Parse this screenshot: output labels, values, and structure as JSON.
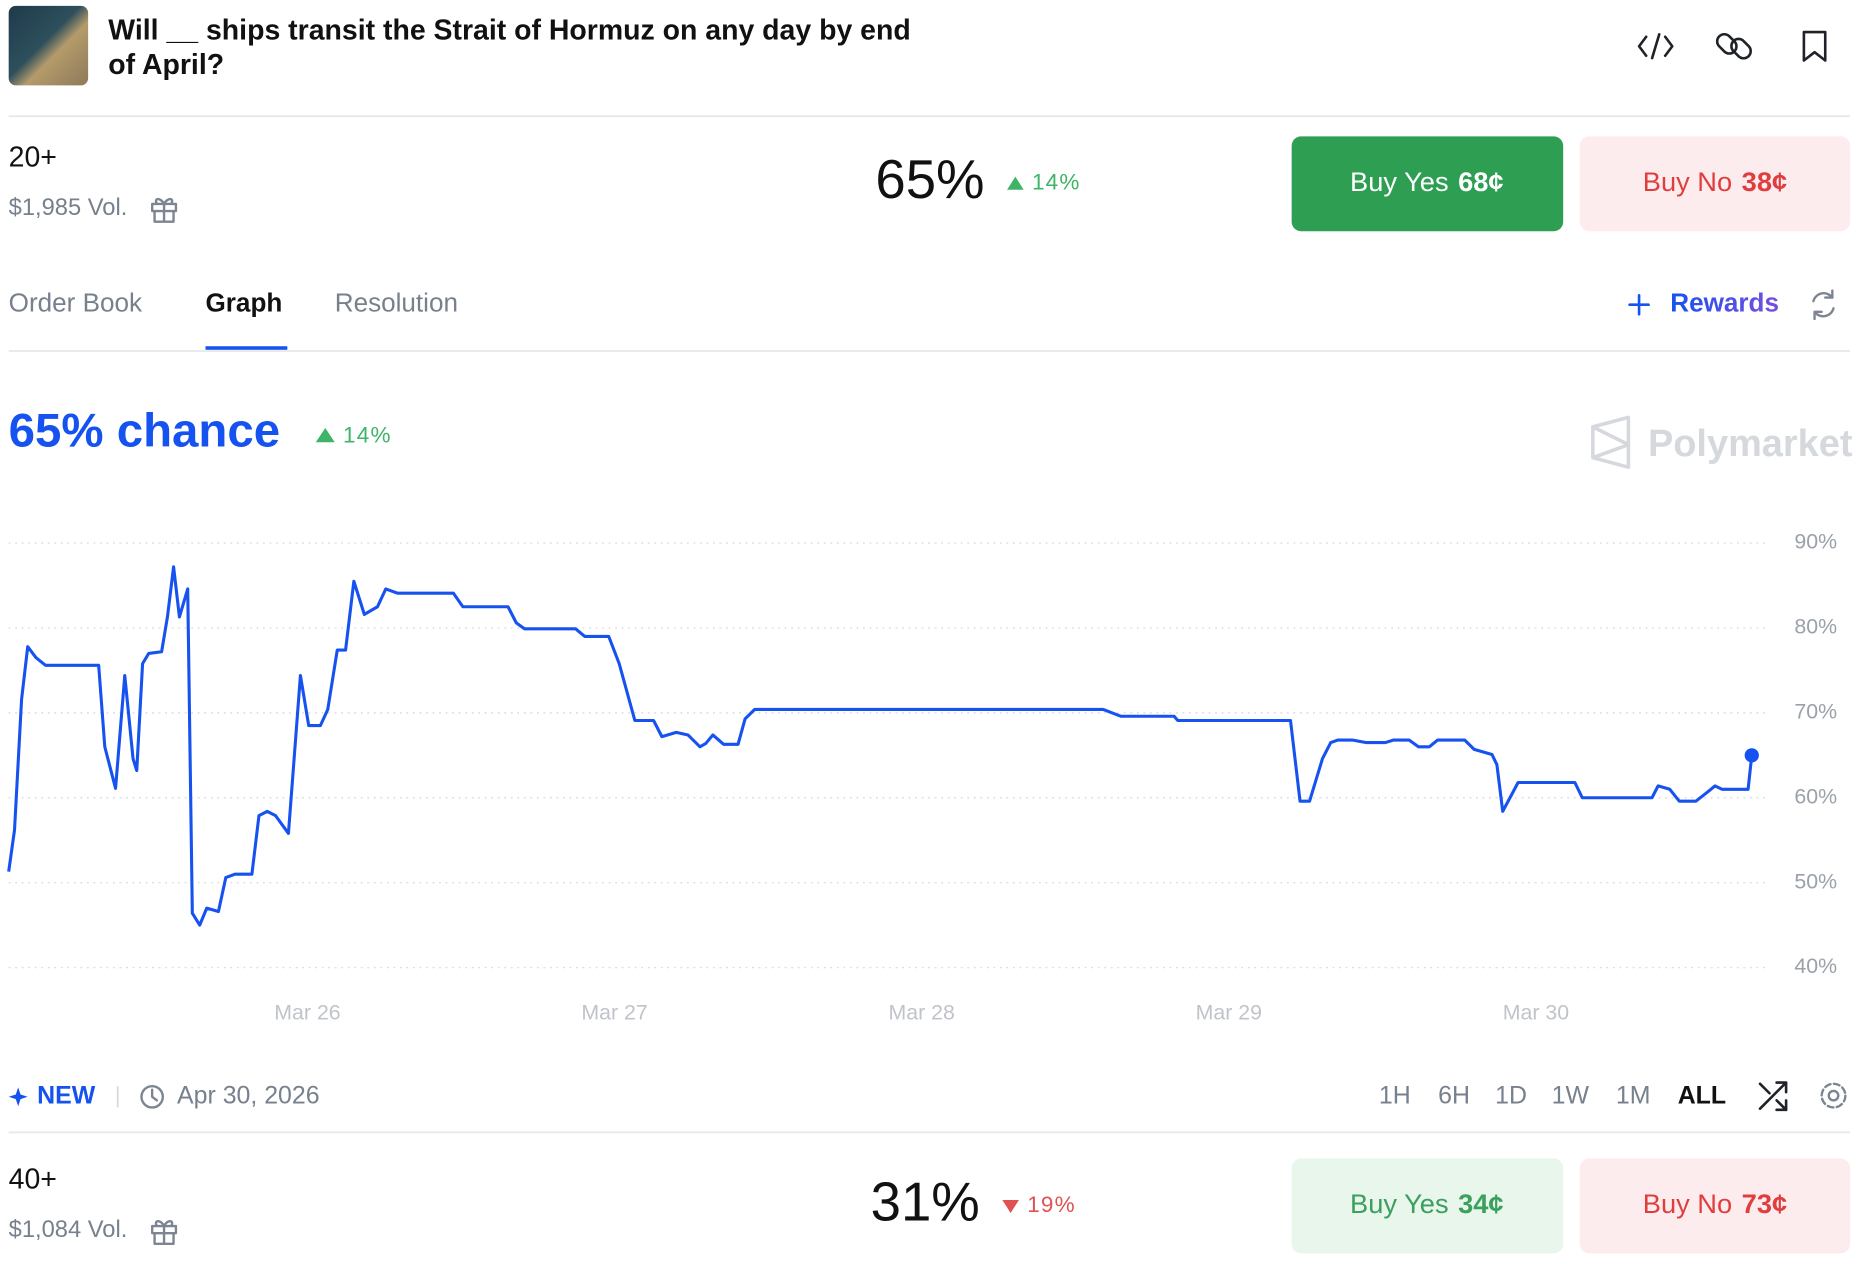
{
  "header": {
    "title_lines": [
      "Will __ ships transit the Strait of Hormuz on any day by end",
      "of April?"
    ]
  },
  "outcomes": [
    {
      "label": "20+",
      "volume": "$1,985 Vol.",
      "chance": "65%",
      "change": "14%",
      "direction": "up",
      "buy_yes": "Buy Yes",
      "yes_price": "68¢",
      "buy_no": "Buy No",
      "no_price": "38¢"
    },
    {
      "label": "40+",
      "volume": "$1,084 Vol.",
      "chance": "31%",
      "change": "19%",
      "direction": "down",
      "buy_yes": "Buy Yes",
      "yes_price": "34¢",
      "buy_no": "Buy No",
      "no_price": "73¢"
    }
  ],
  "tabs": [
    "Order Book",
    "Graph",
    "Resolution"
  ],
  "rewards": "Rewards",
  "chart_data": {
    "type": "line",
    "title": "65% chance",
    "change": "14%",
    "watermark": "Polymarket",
    "color": "#1652f0",
    "grid": true,
    "xlim": [
      25.027,
      30.753
    ],
    "ylim": [
      40,
      90
    ],
    "xticks": [
      {
        "value": 26,
        "label": "Mar 26"
      },
      {
        "value": 27,
        "label": "Mar 27"
      },
      {
        "value": 28,
        "label": "Mar 28"
      },
      {
        "value": 29,
        "label": "Mar 29"
      },
      {
        "value": 30,
        "label": "Mar 30"
      }
    ],
    "yticks": [
      {
        "value": 40,
        "label": "40%"
      },
      {
        "value": 50,
        "label": "50%"
      },
      {
        "value": 60,
        "label": "60%"
      },
      {
        "value": 70,
        "label": "70%"
      },
      {
        "value": 80,
        "label": "80%"
      },
      {
        "value": 90,
        "label": "90%"
      }
    ],
    "x": [
      25.027,
      25.046,
      25.069,
      25.089,
      25.116,
      25.147,
      25.32,
      25.34,
      25.375,
      25.405,
      25.432,
      25.444,
      25.463,
      25.483,
      25.525,
      25.544,
      25.564,
      25.583,
      25.61,
      25.625,
      25.649,
      25.672,
      25.71,
      25.734,
      25.764,
      25.819,
      25.842,
      25.869,
      25.896,
      25.938,
      25.977,
      26.004,
      26.042,
      26.066,
      26.097,
      26.124,
      26.151,
      26.185,
      26.228,
      26.255,
      26.293,
      26.475,
      26.506,
      26.653,
      26.68,
      26.707,
      26.873,
      26.903,
      26.981,
      27.015,
      27.066,
      27.127,
      27.154,
      27.201,
      27.239,
      27.278,
      27.297,
      27.32,
      27.355,
      27.402,
      27.425,
      27.456,
      28.591,
      28.649,
      28.822,
      28.834,
      29.201,
      29.232,
      29.263,
      29.305,
      29.332,
      29.355,
      29.402,
      29.448,
      29.51,
      29.537,
      29.587,
      29.618,
      29.653,
      29.68,
      29.768,
      29.799,
      29.857,
      29.873,
      29.892,
      29.942,
      30.127,
      30.151,
      30.378,
      30.398,
      30.436,
      30.467,
      30.521,
      30.56,
      30.583,
      30.606,
      30.691,
      30.703
    ],
    "values": [
      51.3,
      56.2,
      71.6,
      77.8,
      76.5,
      75.6,
      75.6,
      66.0,
      61.1,
      74.4,
      64.6,
      63.2,
      75.8,
      77.0,
      77.2,
      81.3,
      87.2,
      81.3,
      84.6,
      46.4,
      45.0,
      47.0,
      46.6,
      50.6,
      51.0,
      51.0,
      57.9,
      58.4,
      57.9,
      55.8,
      74.4,
      68.5,
      68.5,
      70.4,
      77.4,
      77.4,
      85.5,
      81.6,
      82.5,
      84.6,
      84.1,
      84.1,
      82.5,
      82.5,
      80.6,
      79.9,
      79.9,
      79.0,
      79.0,
      75.8,
      69.1,
      69.1,
      67.2,
      67.7,
      67.4,
      66.0,
      66.4,
      67.4,
      66.3,
      66.3,
      69.3,
      70.4,
      70.4,
      69.6,
      69.6,
      69.1,
      69.1,
      59.6,
      59.6,
      64.6,
      66.5,
      66.8,
      66.8,
      66.5,
      66.5,
      66.8,
      66.8,
      66.0,
      66.0,
      66.8,
      66.8,
      65.7,
      65.1,
      63.9,
      58.4,
      61.8,
      61.8,
      60.0,
      60.0,
      61.4,
      61.0,
      59.6,
      59.6,
      60.7,
      61.4,
      61.0,
      61.0,
      65.0
    ]
  },
  "footer": {
    "badge": "NEW",
    "date": "Apr 30, 2026",
    "ranges": [
      "1H",
      "6H",
      "1D",
      "1W",
      "1M",
      "ALL"
    ],
    "active_range": 5
  }
}
